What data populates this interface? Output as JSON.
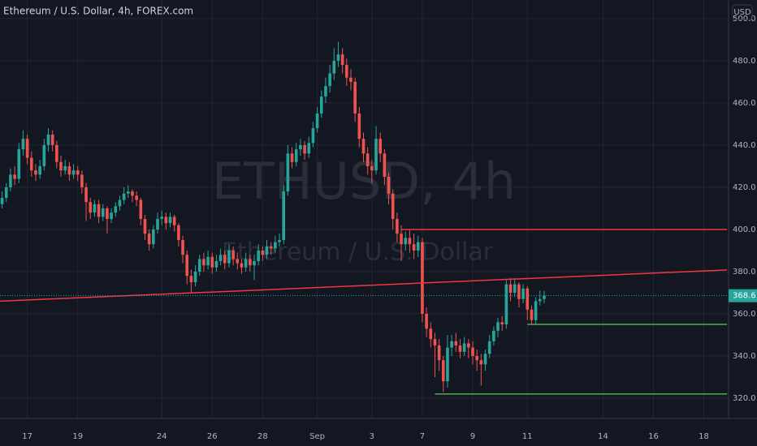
{
  "chart_data": {
    "type": "candlestick",
    "title": "Ethereum / U.S. Dollar, 4h, FOREX.com",
    "currency": "USD",
    "watermark": "ETHUSD, 4h",
    "watermark_sub": "Ethereum / U.S. Dollar",
    "up_color": "#26a69a",
    "down_color": "#ef5350",
    "grid": true,
    "xlim": [
      -0.5,
      172.5
    ],
    "ylim": [
      310.4,
      508.8
    ],
    "xticks": [
      {
        "value": 6,
        "label": "17"
      },
      {
        "value": 18,
        "label": "19"
      },
      {
        "value": 38,
        "label": "24"
      },
      {
        "value": 50,
        "label": "26"
      },
      {
        "value": 62,
        "label": "28"
      },
      {
        "value": 75,
        "label": "Sep"
      },
      {
        "value": 88,
        "label": "3"
      },
      {
        "value": 100,
        "label": "7"
      },
      {
        "value": 112,
        "label": "9"
      },
      {
        "value": 125,
        "label": "11"
      },
      {
        "value": 143,
        "label": "14"
      },
      {
        "value": 155,
        "label": "16"
      },
      {
        "value": 167,
        "label": "18"
      }
    ],
    "yticks": [
      {
        "value": 320,
        "label": "320.0"
      },
      {
        "value": 340,
        "label": "340.0"
      },
      {
        "value": 360,
        "label": "360.0"
      },
      {
        "value": 380,
        "label": "380.0"
      },
      {
        "value": 400,
        "label": "400.0"
      },
      {
        "value": 420,
        "label": "420.0"
      },
      {
        "value": 440,
        "label": "440.0"
      },
      {
        "value": 460,
        "label": "460.0"
      },
      {
        "value": 480,
        "label": "480.0"
      },
      {
        "value": 500,
        "label": "500.0"
      }
    ],
    "last_price": 368.6,
    "lines": [
      {
        "color": "#f23645",
        "x": [
          95,
          172.5
        ],
        "y": [
          400,
          400
        ]
      },
      {
        "color": "#f23645",
        "x": [
          -0.5,
          172.5
        ],
        "y": [
          366,
          380.8
        ]
      },
      {
        "color": "#4caf50",
        "x": [
          125,
          172.5
        ],
        "y": [
          355,
          355
        ]
      },
      {
        "color": "#4caf50",
        "x": [
          103,
          172.5
        ],
        "y": [
          322,
          322
        ]
      }
    ],
    "candles": [
      [
        412,
        418,
        410,
        415
      ],
      [
        415,
        422,
        413,
        420
      ],
      [
        420,
        429,
        418,
        426
      ],
      [
        426,
        430,
        421,
        424
      ],
      [
        424,
        441,
        422,
        438
      ],
      [
        438,
        447,
        435,
        443
      ],
      [
        443,
        445,
        431,
        434
      ],
      [
        434,
        437,
        425,
        428
      ],
      [
        428,
        431,
        423,
        426
      ],
      [
        426,
        433,
        424,
        430
      ],
      [
        430,
        443,
        428,
        440
      ],
      [
        440,
        448,
        437,
        445
      ],
      [
        445,
        447,
        437,
        440
      ],
      [
        440,
        442,
        429,
        432
      ],
      [
        432,
        435,
        425,
        428
      ],
      [
        428,
        433,
        426,
        430
      ],
      [
        430,
        432,
        423,
        426
      ],
      [
        426,
        431,
        424,
        428
      ],
      [
        428,
        430,
        423,
        426
      ],
      [
        426,
        428,
        417,
        420
      ],
      [
        420,
        422,
        404,
        413
      ],
      [
        413,
        415,
        405,
        408
      ],
      [
        408,
        414,
        406,
        412
      ],
      [
        412,
        414,
        403,
        406
      ],
      [
        406,
        412,
        404,
        410
      ],
      [
        410,
        411,
        398,
        405
      ],
      [
        405,
        410,
        403,
        408
      ],
      [
        408,
        413,
        406,
        411
      ],
      [
        411,
        416,
        409,
        414
      ],
      [
        414,
        420,
        412,
        417
      ],
      [
        417,
        421,
        415,
        418
      ],
      [
        418,
        419,
        413,
        416
      ],
      [
        416,
        418,
        411,
        414
      ],
      [
        414,
        415,
        402,
        405
      ],
      [
        405,
        407,
        395,
        398
      ],
      [
        398,
        400,
        390,
        393
      ],
      [
        393,
        402,
        391,
        400
      ],
      [
        400,
        408,
        398,
        405
      ],
      [
        405,
        409,
        402,
        406
      ],
      [
        406,
        408,
        400,
        403
      ],
      [
        403,
        408,
        401,
        406
      ],
      [
        406,
        407,
        399,
        402
      ],
      [
        402,
        403,
        392,
        395
      ],
      [
        395,
        397,
        384,
        388
      ],
      [
        388,
        390,
        374,
        378
      ],
      [
        378,
        381,
        370,
        375
      ],
      [
        375,
        383,
        373,
        380
      ],
      [
        380,
        388,
        378,
        386
      ],
      [
        386,
        389,
        380,
        383
      ],
      [
        383,
        390,
        381,
        387
      ],
      [
        387,
        389,
        379,
        382
      ],
      [
        382,
        388,
        380,
        385
      ],
      [
        385,
        391,
        383,
        388
      ],
      [
        388,
        390,
        381,
        384
      ],
      [
        384,
        393,
        382,
        390
      ],
      [
        390,
        392,
        383,
        386
      ],
      [
        386,
        389,
        381,
        384
      ],
      [
        384,
        386,
        379,
        382
      ],
      [
        382,
        389,
        380,
        386
      ],
      [
        386,
        388,
        380,
        383
      ],
      [
        383,
        388,
        376,
        385
      ],
      [
        385,
        393,
        383,
        390
      ],
      [
        390,
        392,
        385,
        388
      ],
      [
        388,
        395,
        386,
        392
      ],
      [
        392,
        394,
        388,
        391
      ],
      [
        391,
        397,
        389,
        394
      ],
      [
        394,
        398,
        392,
        395
      ],
      [
        395,
        421,
        393,
        418
      ],
      [
        418,
        440,
        416,
        436
      ],
      [
        436,
        439,
        429,
        432
      ],
      [
        432,
        441,
        430,
        438
      ],
      [
        438,
        443,
        435,
        440
      ],
      [
        440,
        442,
        433,
        436
      ],
      [
        436,
        444,
        434,
        441
      ],
      [
        441,
        451,
        439,
        448
      ],
      [
        448,
        458,
        446,
        455
      ],
      [
        455,
        466,
        453,
        463
      ],
      [
        463,
        472,
        460,
        468
      ],
      [
        468,
        478,
        465,
        474
      ],
      [
        474,
        486,
        471,
        480
      ],
      [
        480,
        489,
        477,
        483
      ],
      [
        483,
        486,
        474,
        478
      ],
      [
        478,
        481,
        468,
        472
      ],
      [
        472,
        476,
        466,
        470
      ],
      [
        470,
        472,
        451,
        455
      ],
      [
        455,
        458,
        439,
        443
      ],
      [
        443,
        446,
        432,
        436
      ],
      [
        436,
        439,
        426,
        430
      ],
      [
        430,
        433,
        422,
        428
      ],
      [
        428,
        449,
        426,
        443
      ],
      [
        443,
        446,
        432,
        436
      ],
      [
        436,
        438,
        421,
        425
      ],
      [
        425,
        427,
        412,
        417
      ],
      [
        417,
        419,
        400,
        405
      ],
      [
        405,
        408,
        394,
        398
      ],
      [
        398,
        402,
        385,
        393
      ],
      [
        393,
        399,
        390,
        396
      ],
      [
        396,
        400,
        389,
        393
      ],
      [
        393,
        398,
        386,
        390
      ],
      [
        390,
        397,
        387,
        394
      ],
      [
        394,
        396,
        356,
        360
      ],
      [
        360,
        363,
        349,
        353
      ],
      [
        353,
        356,
        344,
        348
      ],
      [
        348,
        351,
        330,
        345
      ],
      [
        345,
        348,
        333,
        338
      ],
      [
        338,
        340,
        323,
        328
      ],
      [
        328,
        350,
        325,
        344
      ],
      [
        344,
        350,
        340,
        347
      ],
      [
        347,
        351,
        342,
        345
      ],
      [
        345,
        348,
        339,
        342
      ],
      [
        342,
        349,
        340,
        346
      ],
      [
        346,
        348,
        339,
        344
      ],
      [
        344,
        347,
        336,
        340
      ],
      [
        340,
        343,
        333,
        338
      ],
      [
        338,
        341,
        326,
        336
      ],
      [
        336,
        343,
        333,
        341
      ],
      [
        341,
        350,
        339,
        347
      ],
      [
        347,
        354,
        345,
        352
      ],
      [
        352,
        358,
        349,
        356
      ],
      [
        356,
        359,
        352,
        355
      ],
      [
        355,
        376,
        353,
        374
      ],
      [
        374,
        377,
        366,
        370
      ],
      [
        370,
        377,
        368,
        374
      ],
      [
        374,
        375,
        363,
        367
      ],
      [
        367,
        374,
        365,
        372
      ],
      [
        372,
        373,
        357,
        362
      ],
      [
        362,
        364,
        355,
        357
      ],
      [
        357,
        368,
        355,
        366
      ],
      [
        366,
        371,
        364,
        367
      ],
      [
        367,
        371,
        365,
        368.6
      ]
    ]
  }
}
